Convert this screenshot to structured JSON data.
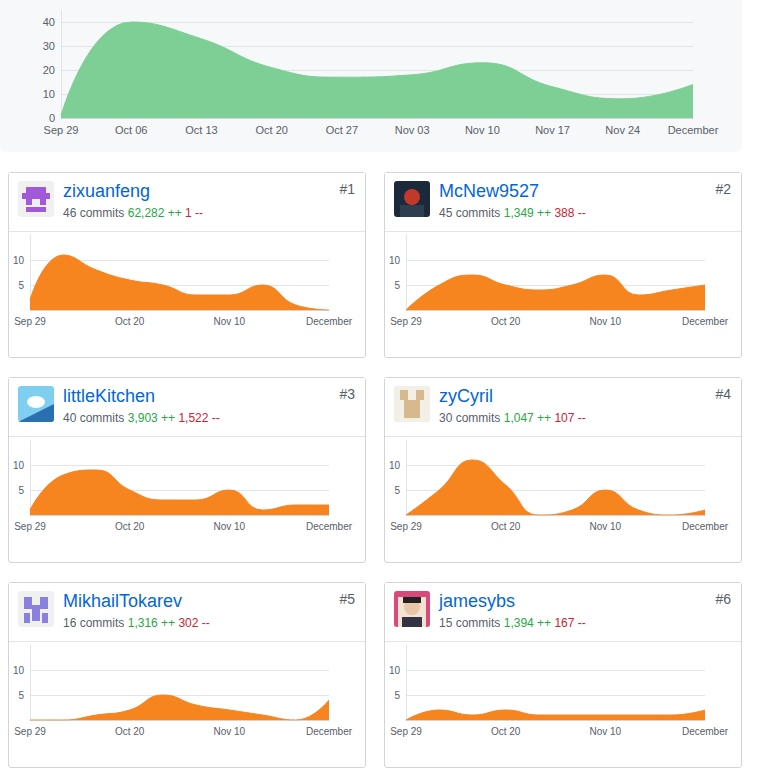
{
  "chart_data": [
    {
      "type": "area",
      "color": "#7ecf95",
      "grid": true,
      "categories": [
        "Sep 29",
        "Oct 06",
        "Oct 13",
        "Oct 20",
        "Oct 27",
        "Nov 03",
        "Nov 10",
        "Nov 17",
        "Nov 24",
        "December"
      ],
      "values": [
        1,
        40,
        33,
        21,
        17,
        18,
        23,
        13,
        8,
        14
      ],
      "ylim": [
        0,
        45
      ],
      "yticks": [
        0,
        10,
        20,
        30,
        40
      ]
    },
    {
      "type": "area",
      "color": "#f6841f",
      "grid": true,
      "categories": [
        "Sep 29",
        null,
        null,
        "Oct 20",
        null,
        null,
        "Nov 10",
        null,
        null,
        "December"
      ],
      "values": [
        2,
        11,
        8,
        6,
        5,
        3,
        3,
        5,
        1,
        0
      ],
      "ylim": [
        0,
        15
      ],
      "yticks": [
        5,
        10
      ]
    },
    {
      "type": "area",
      "color": "#f6841f",
      "grid": true,
      "categories": [
        "Sep 29",
        null,
        null,
        "Oct 20",
        null,
        null,
        "Nov 10",
        null,
        null,
        "December"
      ],
      "values": [
        0,
        5,
        7,
        5,
        4,
        5,
        7,
        3,
        4,
        5
      ],
      "ylim": [
        0,
        15
      ],
      "yticks": [
        5,
        10
      ]
    },
    {
      "type": "area",
      "color": "#f6841f",
      "grid": true,
      "categories": [
        "Sep 29",
        null,
        null,
        "Oct 20",
        null,
        null,
        "Nov 10",
        null,
        null,
        "December"
      ],
      "values": [
        1,
        8,
        9,
        5,
        3,
        3,
        5,
        1,
        2,
        2
      ],
      "ylim": [
        0,
        15
      ],
      "yticks": [
        5,
        10
      ]
    },
    {
      "type": "area",
      "color": "#f6841f",
      "grid": true,
      "categories": [
        "Sep 29",
        null,
        null,
        "Oct 20",
        null,
        null,
        "Nov 10",
        null,
        null,
        "December"
      ],
      "values": [
        0,
        5,
        11,
        6,
        0,
        1,
        5,
        1,
        0,
        1
      ],
      "ylim": [
        0,
        15
      ],
      "yticks": [
        5,
        10
      ]
    },
    {
      "type": "area",
      "color": "#f6841f",
      "grid": true,
      "categories": [
        "Sep 29",
        null,
        null,
        "Oct 20",
        null,
        null,
        "Nov 10",
        null,
        null,
        "December"
      ],
      "values": [
        0,
        0,
        1,
        2,
        5,
        3,
        2,
        1,
        0,
        4
      ],
      "ylim": [
        0,
        15
      ],
      "yticks": [
        5,
        10
      ]
    },
    {
      "type": "area",
      "color": "#f6841f",
      "grid": true,
      "categories": [
        "Sep 29",
        null,
        null,
        "Oct 20",
        null,
        null,
        "Nov 10",
        null,
        null,
        "December"
      ],
      "values": [
        0,
        2,
        1,
        2,
        1,
        1,
        1,
        1,
        1,
        2
      ],
      "ylim": [
        0,
        15
      ],
      "yticks": [
        5,
        10
      ]
    }
  ],
  "cards": [
    {
      "name": "zixuanfeng",
      "rank": "#1",
      "commits": "46 commits",
      "additions": "62,282 ++",
      "deletions": "1 --"
    },
    {
      "name": "McNew9527",
      "rank": "#2",
      "commits": "45 commits",
      "additions": "1,349 ++",
      "deletions": "388 --"
    },
    {
      "name": "littleKitchen",
      "rank": "#3",
      "commits": "40 commits",
      "additions": "3,903 ++",
      "deletions": "1,522 --"
    },
    {
      "name": "zyCyril",
      "rank": "#4",
      "commits": "30 commits",
      "additions": "1,047 ++",
      "deletions": "107 --"
    },
    {
      "name": "MikhailTokarev",
      "rank": "#5",
      "commits": "16 commits",
      "additions": "1,316 ++",
      "deletions": "302 --"
    },
    {
      "name": "jamesybs",
      "rank": "#6",
      "commits": "15 commits",
      "additions": "1,394 ++",
      "deletions": "167 --"
    }
  ]
}
